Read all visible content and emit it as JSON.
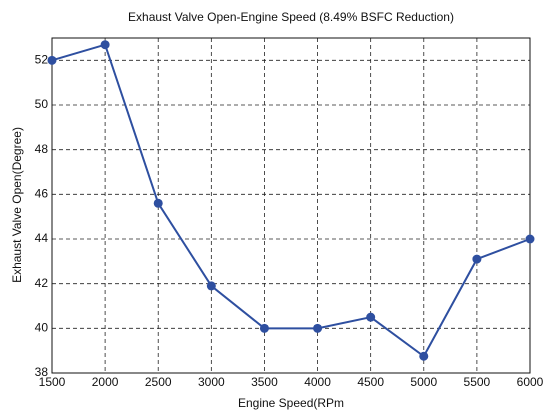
{
  "chart_data": {
    "type": "line",
    "title": "Exhaust Valve Open-Engine Speed (8.49% BSFC Reduction)",
    "x_label": "Engine Speed(RPm",
    "y_label": "Exhaust Valve Open(Degree)",
    "x": [
      1500,
      2000,
      2500,
      3000,
      3500,
      4000,
      4500,
      5000,
      5500,
      6000
    ],
    "series": [
      {
        "name": "Exhaust Valve Open",
        "color": "#2e4fa0",
        "values": [
          52,
          52.7,
          45.6,
          41.9,
          40,
          40,
          40.5,
          38.75,
          43.1,
          44.0
        ]
      }
    ],
    "xlim": [
      1500,
      6000
    ],
    "xticks": [
      1500,
      2000,
      2500,
      3000,
      3500,
      4000,
      4500,
      5000,
      5500,
      6000
    ],
    "ylim": [
      38,
      53
    ],
    "yticks": [
      38,
      40,
      42,
      44,
      46,
      48,
      50,
      52
    ],
    "grid": true
  }
}
